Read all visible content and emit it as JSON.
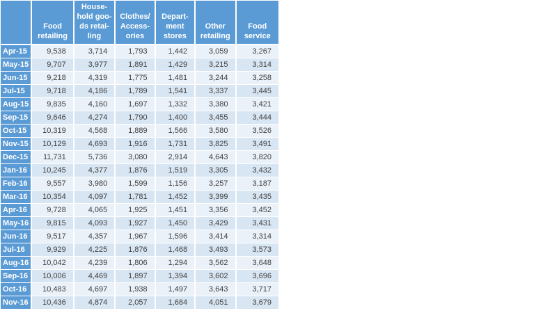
{
  "colors": {
    "header_bg": "#5b9bd5",
    "row_label_bg": "#5b9bd5",
    "band_light": "#eaf1f9",
    "band_dark": "#d8e5f2",
    "header_text": "#ffffff",
    "cell_text": "#404040",
    "grid": "#ffffff"
  },
  "table": {
    "corner_label": "",
    "columns": [
      {
        "label": "Food retailing",
        "label_lines": [
          "Food",
          "retailing"
        ]
      },
      {
        "label": "Household goods retailing",
        "label_lines": [
          "House-",
          "hold goo-",
          "ds retai-",
          "ling"
        ]
      },
      {
        "label": "Clothes/Accessories",
        "label_lines": [
          "Clothes/",
          "Access-",
          "ories"
        ]
      },
      {
        "label": "Department stores",
        "label_lines": [
          "Depart-",
          "ment",
          "stores"
        ]
      },
      {
        "label": "Other retailing",
        "label_lines": [
          "Other",
          "retailing"
        ]
      },
      {
        "label": "Food service",
        "label_lines": [
          "Food",
          "service"
        ]
      }
    ],
    "rows": [
      {
        "label": "Apr-15",
        "values": [
          "9,538",
          "3,714",
          "1,793",
          "1,442",
          "3,059",
          "3,267"
        ]
      },
      {
        "label": "May-15",
        "values": [
          "9,707",
          "3,977",
          "1,891",
          "1,429",
          "3,215",
          "3,314"
        ]
      },
      {
        "label": "Jun-15",
        "values": [
          "9,218",
          "4,319",
          "1,775",
          "1,481",
          "3,244",
          "3,258"
        ]
      },
      {
        "label": "Jul-15",
        "values": [
          "9,718",
          "4,186",
          "1,789",
          "1,541",
          "3,337",
          "3,445"
        ]
      },
      {
        "label": "Aug-15",
        "values": [
          "9,835",
          "4,160",
          "1,697",
          "1,332",
          "3,380",
          "3,421"
        ]
      },
      {
        "label": "Sep-15",
        "values": [
          "9,646",
          "4,274",
          "1,790",
          "1,400",
          "3,455",
          "3,444"
        ]
      },
      {
        "label": "Oct-15",
        "values": [
          "10,319",
          "4,568",
          "1,889",
          "1,566",
          "3,580",
          "3,526"
        ]
      },
      {
        "label": "Nov-15",
        "values": [
          "10,129",
          "4,693",
          "1,916",
          "1,731",
          "3,825",
          "3,491"
        ]
      },
      {
        "label": "Dec-15",
        "values": [
          "11,731",
          "5,736",
          "3,080",
          "2,914",
          "4,643",
          "3,820"
        ]
      },
      {
        "label": "Jan-16",
        "values": [
          "10,245",
          "4,377",
          "1,876",
          "1,519",
          "3,305",
          "3,432"
        ]
      },
      {
        "label": "Feb-16",
        "values": [
          "9,557",
          "3,980",
          "1,599",
          "1,156",
          "3,257",
          "3,187"
        ]
      },
      {
        "label": "Mar-16",
        "values": [
          "10,354",
          "4,097",
          "1,781",
          "1,452",
          "3,399",
          "3,435"
        ]
      },
      {
        "label": "Apr-16",
        "values": [
          "9,728",
          "4,065",
          "1,925",
          "1,451",
          "3,356",
          "3,452"
        ]
      },
      {
        "label": "May-16",
        "values": [
          "9,815",
          "4,093",
          "1,927",
          "1,450",
          "3,429",
          "3,431"
        ]
      },
      {
        "label": "Jun-16",
        "values": [
          "9,517",
          "4,357",
          "1,967",
          "1,596",
          "3,414",
          "3,314"
        ]
      },
      {
        "label": "Jul-16",
        "values": [
          "9,929",
          "4,225",
          "1,876",
          "1,468",
          "3,493",
          "3,573"
        ]
      },
      {
        "label": "Aug-16",
        "values": [
          "10,042",
          "4,239",
          "1,806",
          "1,294",
          "3,562",
          "3,648"
        ]
      },
      {
        "label": "Sep-16",
        "values": [
          "10,006",
          "4,469",
          "1,897",
          "1,394",
          "3,602",
          "3,696"
        ]
      },
      {
        "label": "Oct-16",
        "values": [
          "10,483",
          "4,697",
          "1,938",
          "1,497",
          "3,643",
          "3,717"
        ]
      },
      {
        "label": "Nov-16",
        "values": [
          "10,436",
          "4,874",
          "2,057",
          "1,684",
          "4,051",
          "3,679"
        ]
      }
    ]
  }
}
